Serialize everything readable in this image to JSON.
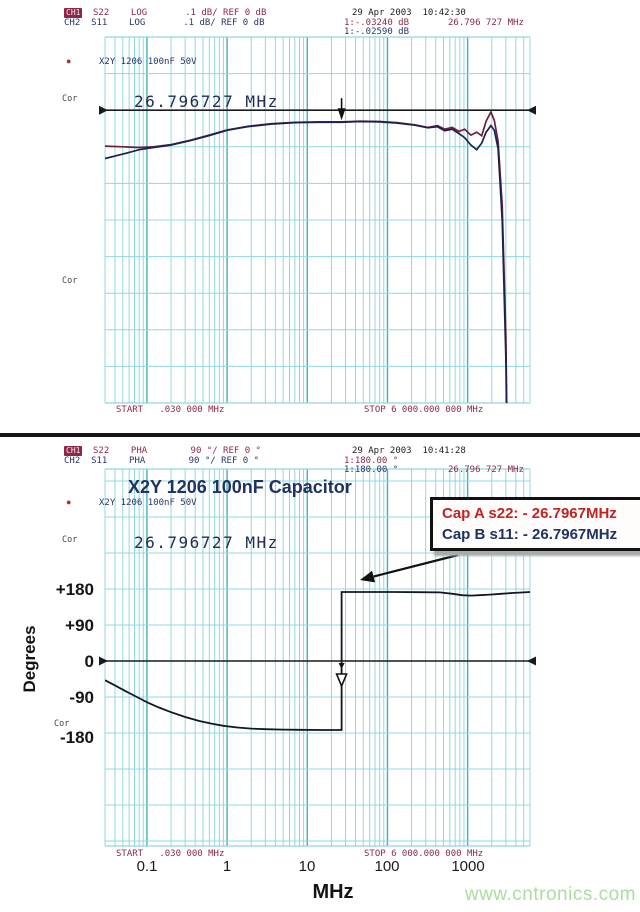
{
  "panel_top": {
    "header": {
      "ch1_badge": "CH1",
      "line1": "S22    LOG       .1 dB/ REF 0 dB",
      "line2": "CH2  S11    LOG       .1 dB/ REF 0 dB",
      "datetime": "29 Apr 2003  10:42:30",
      "marker1_value": "1:-.03240 dB",
      "marker1_freq": "26.796 727 MHz",
      "marker2_value": "1:-.02590 dB"
    },
    "bullet": "●",
    "device_label": "X2Y 1206 100nF 50V",
    "cor_upper": "Cor",
    "cor_lower": "Cor",
    "marker_readout": "26.796727 MHz",
    "start_label": "START   .030 000 MHz",
    "stop_label": "STOP 6 000.000 000 MHz"
  },
  "panel_bottom": {
    "header": {
      "ch1_badge": "CH1",
      "line1": "S22    PHA        90 °/ REF 0 °",
      "line2": "CH2  S11    PHA        90 °/ REF 0 °",
      "datetime": "29 Apr 2003  10:41:28",
      "marker1_value": "1:180.00 °",
      "marker2_value": "1:180.00 °",
      "marker_freq": "26.796 727 MHz"
    },
    "title": "X2Y 1206 100nF Capacitor",
    "bullet": "●",
    "device_label": "X2Y 1206 100nF 50V",
    "cor_upper": "Cor",
    "cor_lower": "Cor",
    "marker_readout": "26.796727 MHz",
    "annotation": {
      "line1": "Cap A s22: - 26.7967MHz",
      "line2": "Cap B s11: - 26.7967MHz"
    },
    "start_label": "START   .030 000 MHz",
    "stop_label": "STOP 6 000.000 000 MHz",
    "axis": {
      "ylabel": "Degrees",
      "yticks": [
        "+180",
        "+90",
        "0",
        "-90",
        "-180"
      ],
      "xticks": [
        "0.1",
        "1",
        "10",
        "100",
        "1000"
      ],
      "xlabel": "MHz"
    }
  },
  "watermark": "www.cntronics.com",
  "colors": {
    "grid_minor": "#90d8df",
    "grid_major": "#3fb0c3",
    "trace_s22": "#6e1f38",
    "trace_s11": "#1a2150",
    "trace_phase": "#101826",
    "header_maroon": "#8c2846",
    "header_navy": "#27356b",
    "annotation_red": "#c42222",
    "annotation_blue": "#1e3264",
    "watermark_green": "#aadd9f",
    "ref_line": "#1a1a1a"
  },
  "chart_data": [
    {
      "type": "line",
      "title": "X2Y 1206 100nF 50V - S22/S11 log magnitude",
      "x_axis": {
        "scale": "log",
        "unit": "MHz",
        "min": 0.03,
        "max": 6000,
        "start_label": "START .030 000 MHz",
        "stop_label": "STOP 6 000.000 000 MHz"
      },
      "y_axis": {
        "unit": "dB",
        "per_div": 0.1,
        "ref": 0,
        "ref_note": ".1 dB/ REF 0 dB"
      },
      "legend_position": "none",
      "grid": true,
      "marker": {
        "freq_mhz": 26.796727,
        "s22_db": -0.0324,
        "s11_db": -0.0259
      },
      "series": [
        {
          "name": "CH1 S22 (Cap A)",
          "color": "#6e1f38",
          "points": [
            [
              0.03,
              -0.098
            ],
            [
              0.05,
              -0.1
            ],
            [
              0.08,
              -0.102
            ],
            [
              0.12,
              -0.1
            ],
            [
              0.2,
              -0.094
            ],
            [
              0.35,
              -0.082
            ],
            [
              0.6,
              -0.068
            ],
            [
              1,
              -0.054
            ],
            [
              1.8,
              -0.044
            ],
            [
              3.5,
              -0.037
            ],
            [
              7,
              -0.033
            ],
            [
              14,
              -0.032
            ],
            [
              26.8,
              -0.032
            ],
            [
              45,
              -0.03
            ],
            [
              80,
              -0.031
            ],
            [
              130,
              -0.034
            ],
            [
              220,
              -0.04
            ],
            [
              320,
              -0.047
            ],
            [
              420,
              -0.042
            ],
            [
              520,
              -0.052
            ],
            [
              640,
              -0.047
            ],
            [
              780,
              -0.058
            ],
            [
              920,
              -0.052
            ],
            [
              1100,
              -0.068
            ],
            [
              1300,
              -0.06
            ],
            [
              1500,
              -0.07
            ],
            [
              1700,
              -0.03
            ],
            [
              1950,
              -0.005
            ],
            [
              2150,
              -0.028
            ],
            [
              2400,
              -0.085
            ],
            [
              2700,
              -0.26
            ],
            [
              3000,
              -0.62
            ],
            [
              3250,
              -1.25
            ]
          ]
        },
        {
          "name": "CH2 S11 (Cap B)",
          "color": "#1a2150",
          "points": [
            [
              0.03,
              -0.132
            ],
            [
              0.05,
              -0.12
            ],
            [
              0.08,
              -0.108
            ],
            [
              0.12,
              -0.102
            ],
            [
              0.2,
              -0.095
            ],
            [
              0.35,
              -0.083
            ],
            [
              0.6,
              -0.069
            ],
            [
              1,
              -0.055
            ],
            [
              1.8,
              -0.045
            ],
            [
              3.5,
              -0.038
            ],
            [
              7,
              -0.034
            ],
            [
              14,
              -0.033
            ],
            [
              26.8,
              -0.033
            ],
            [
              45,
              -0.031
            ],
            [
              80,
              -0.032
            ],
            [
              130,
              -0.035
            ],
            [
              220,
              -0.041
            ],
            [
              320,
              -0.048
            ],
            [
              420,
              -0.045
            ],
            [
              520,
              -0.056
            ],
            [
              640,
              -0.052
            ],
            [
              780,
              -0.064
            ],
            [
              920,
              -0.075
            ],
            [
              1100,
              -0.095
            ],
            [
              1300,
              -0.108
            ],
            [
              1500,
              -0.09
            ],
            [
              1700,
              -0.06
            ],
            [
              1950,
              -0.042
            ],
            [
              2150,
              -0.055
            ],
            [
              2400,
              -0.105
            ],
            [
              2700,
              -0.3
            ],
            [
              3000,
              -0.68
            ],
            [
              3250,
              -1.3
            ]
          ]
        }
      ]
    },
    {
      "type": "line",
      "title": "X2Y 1206 100nF Capacitor - S22/S11 phase",
      "x_axis": {
        "scale": "log",
        "unit": "MHz",
        "min": 0.03,
        "max": 6000,
        "tick_labels": [
          0.1,
          1,
          10,
          100,
          1000
        ],
        "start_label": "START .030 000 MHz",
        "stop_label": "STOP 6 000.000 000 MHz"
      },
      "y_axis": {
        "unit": "degrees",
        "per_div": 90,
        "ref": 0,
        "ticks": [
          180,
          90,
          0,
          -90,
          -180
        ],
        "label": "Degrees"
      },
      "legend_position": "none",
      "grid": true,
      "marker": {
        "freq_mhz": 26.796727,
        "s22_deg": 180.0,
        "s11_deg": 180.0
      },
      "annotations": [
        "Cap A s22: - 26.7967MHz",
        "Cap B s11: - 26.7967MHz"
      ],
      "series": [
        {
          "name": "CH1 S22 & CH2 S11 (overlaid)",
          "color": "#101826",
          "points": [
            [
              0.03,
              -48
            ],
            [
              0.04,
              -61
            ],
            [
              0.055,
              -76
            ],
            [
              0.075,
              -90
            ],
            [
              0.1,
              -103
            ],
            [
              0.14,
              -116
            ],
            [
              0.2,
              -128
            ],
            [
              0.3,
              -140
            ],
            [
              0.45,
              -150
            ],
            [
              0.65,
              -157
            ],
            [
              0.9,
              -162
            ],
            [
              1.3,
              -166
            ],
            [
              2,
              -169
            ],
            [
              3,
              -170.5
            ],
            [
              5,
              -171.5
            ],
            [
              8,
              -172
            ],
            [
              15,
              -172.5
            ],
            [
              26.78,
              -172.5
            ],
            [
              26.82,
              172.5
            ],
            [
              35,
              172.5
            ],
            [
              60,
              172.5
            ],
            [
              120,
              172.5
            ],
            [
              250,
              172
            ],
            [
              450,
              171.5
            ],
            [
              650,
              168
            ],
            [
              850,
              164.5
            ],
            [
              1100,
              163.5
            ],
            [
              1400,
              164.5
            ],
            [
              1900,
              166
            ],
            [
              2600,
              168
            ],
            [
              3600,
              170
            ],
            [
              5000,
              171.5
            ],
            [
              6000,
              172.5
            ]
          ]
        }
      ]
    }
  ]
}
